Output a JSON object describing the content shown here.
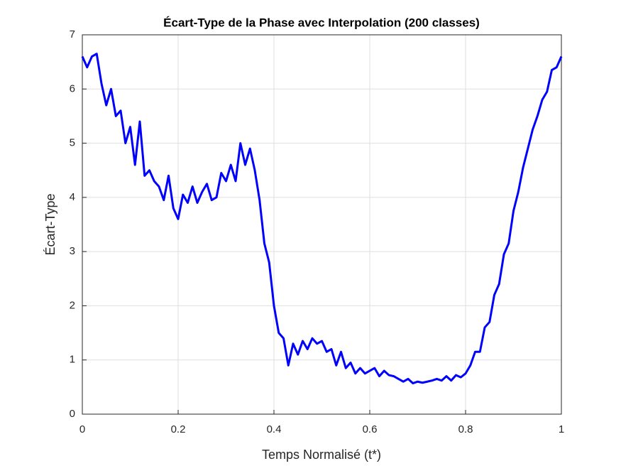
{
  "chart_data": {
    "type": "line",
    "title": "Écart-Type de la Phase avec Interpolation (200 classes)",
    "xlabel": "Temps Normalisé (t*)",
    "ylabel": "Écart-Type",
    "x": [
      0,
      0.01,
      0.02,
      0.03,
      0.04,
      0.05,
      0.06,
      0.07,
      0.08,
      0.09,
      0.1,
      0.11,
      0.12,
      0.13,
      0.14,
      0.15,
      0.16,
      0.17,
      0.18,
      0.19,
      0.2,
      0.21,
      0.22,
      0.23,
      0.24,
      0.25,
      0.26,
      0.27,
      0.28,
      0.29,
      0.3,
      0.31,
      0.32,
      0.33,
      0.34,
      0.35,
      0.36,
      0.37,
      0.38,
      0.39,
      0.4,
      0.41,
      0.42,
      0.43,
      0.44,
      0.45,
      0.46,
      0.47,
      0.48,
      0.49,
      0.5,
      0.51,
      0.52,
      0.53,
      0.54,
      0.55,
      0.56,
      0.57,
      0.58,
      0.59,
      0.6,
      0.61,
      0.62,
      0.63,
      0.64,
      0.65,
      0.66,
      0.67,
      0.68,
      0.69,
      0.7,
      0.71,
      0.72,
      0.73,
      0.74,
      0.75,
      0.76,
      0.77,
      0.78,
      0.79,
      0.8,
      0.81,
      0.82,
      0.83,
      0.84,
      0.85,
      0.86,
      0.87,
      0.88,
      0.89,
      0.9,
      0.91,
      0.92,
      0.93,
      0.94,
      0.95,
      0.96,
      0.97,
      0.98,
      0.99,
      1
    ],
    "series": [
      {
        "color": "#0000ff",
        "values": [
          6.6,
          6.4,
          6.6,
          6.65,
          6.1,
          5.7,
          6.0,
          5.5,
          5.6,
          5.0,
          5.3,
          4.6,
          5.4,
          4.4,
          4.5,
          4.3,
          4.2,
          3.95,
          4.4,
          3.8,
          3.6,
          4.05,
          3.9,
          4.2,
          3.9,
          4.1,
          4.25,
          3.95,
          4.0,
          4.45,
          4.3,
          4.6,
          4.3,
          5.0,
          4.6,
          4.9,
          4.5,
          3.95,
          3.15,
          2.8,
          2.0,
          1.5,
          1.4,
          0.9,
          1.3,
          1.1,
          1.35,
          1.2,
          1.4,
          1.3,
          1.35,
          1.15,
          1.2,
          0.9,
          1.15,
          0.85,
          0.95,
          0.75,
          0.85,
          0.75,
          0.8,
          0.85,
          0.7,
          0.8,
          0.72,
          0.7,
          0.65,
          0.6,
          0.65,
          0.57,
          0.6,
          0.58,
          0.6,
          0.62,
          0.65,
          0.62,
          0.7,
          0.62,
          0.72,
          0.68,
          0.75,
          0.9,
          1.15,
          1.15,
          1.6,
          1.7,
          2.2,
          2.4,
          2.95,
          3.15,
          3.75,
          4.1,
          4.55,
          4.9,
          5.25,
          5.5,
          5.8,
          5.95,
          6.35,
          6.4,
          6.6
        ]
      }
    ],
    "xlim": [
      0,
      1
    ],
    "xticks": [
      0,
      0.2,
      0.4,
      0.6,
      0.8,
      1
    ],
    "ylim": [
      0,
      7
    ],
    "yticks": [
      0,
      1,
      2,
      3,
      4,
      5,
      6,
      7
    ],
    "grid": true
  }
}
